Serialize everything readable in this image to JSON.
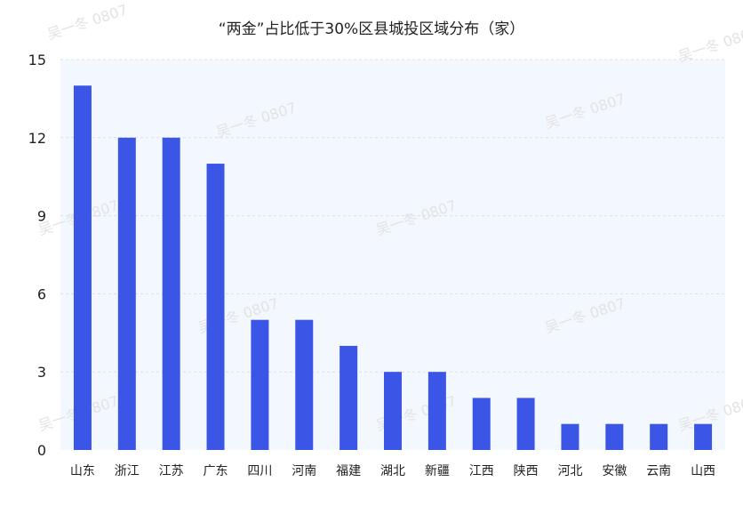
{
  "chart_data": {
    "type": "bar",
    "title": "“两金”占比低于30%区县城投区域分布（家）",
    "categories": [
      "山东",
      "浙江",
      "江苏",
      "广东",
      "四川",
      "河南",
      "福建",
      "湖北",
      "新疆",
      "江西",
      "陕西",
      "河北",
      "安徽",
      "云南",
      "山西"
    ],
    "values": [
      14,
      12,
      12,
      11,
      5,
      5,
      4,
      3,
      3,
      2,
      2,
      1,
      1,
      1,
      1
    ],
    "ylim": [
      0,
      15
    ],
    "yticks": [
      0,
      3,
      6,
      9,
      12,
      15
    ],
    "xlabel": "",
    "ylabel": "",
    "grid": true,
    "legend": "none"
  },
  "colors": {
    "bar": "#3b55e6",
    "plot_background": "#f3f8fe",
    "gridline": "#d8dde6",
    "watermark": "#e3e3e3"
  },
  "watermark": {
    "text": "吴一冬 0807"
  }
}
